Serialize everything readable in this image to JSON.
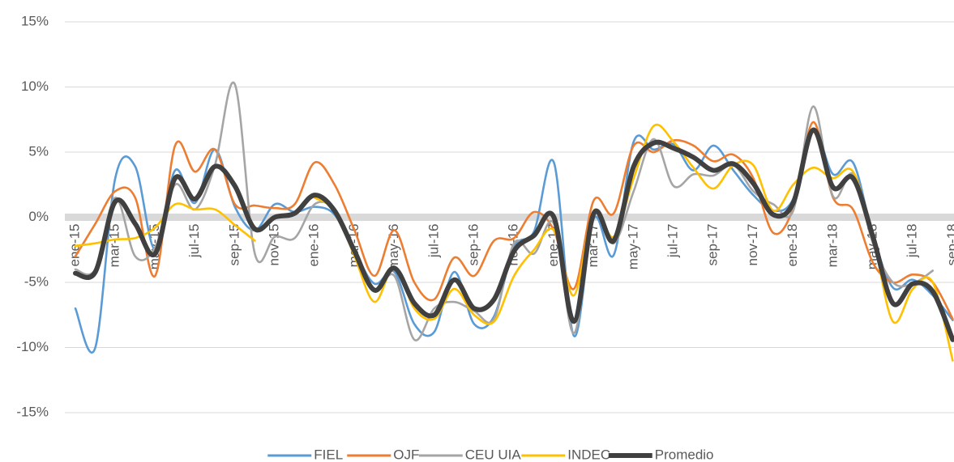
{
  "chart_data": {
    "type": "line",
    "categories": [
      "ene-15",
      null,
      "mar-15",
      null,
      "may-15",
      null,
      "jul-15",
      null,
      "sep-15",
      null,
      "nov-15",
      null,
      "ene-16",
      null,
      "mar-16",
      null,
      "may-16",
      null,
      "jul-16",
      null,
      "sep-16",
      null,
      "nov-16",
      null,
      "ene-17",
      null,
      "mar-17",
      null,
      "may-17",
      null,
      "jul-17",
      null,
      "sep-17",
      null,
      "nov-17",
      null,
      "ene-18",
      null,
      "mar-18",
      null,
      "may-18",
      null,
      "jul-18",
      null,
      "sep-18"
    ],
    "series": [
      {
        "name": "FIEL",
        "color": "#5b9bd5",
        "values": [
          -7.0,
          -10.0,
          3.0,
          3.9,
          -2.5,
          3.6,
          1.1,
          5.2,
          0.8,
          -1.0,
          1.0,
          0.4,
          0.8,
          0.2,
          -2.6,
          -5.1,
          -4.2,
          -8.2,
          -8.8,
          -4.2,
          -8.2,
          -7.6,
          -2.3,
          -1.1,
          4.2,
          -9.1,
          -0.1,
          -2.9,
          5.8,
          5.2,
          5.6,
          3.6,
          5.5,
          3.6,
          1.7,
          0.5,
          1.4,
          6.7,
          3.3,
          4.2,
          -1.4,
          -5.4,
          -4.8,
          -6.0,
          -7.9
        ]
      },
      {
        "name": "OJF",
        "color": "#ed7d31",
        "values": [
          -3.0,
          -0.5,
          2.0,
          1.5,
          -4.5,
          5.5,
          3.5,
          5.2,
          1.0,
          0.9,
          0.7,
          1.0,
          4.2,
          2.5,
          -1.0,
          -4.5,
          -1.0,
          -5.0,
          -6.3,
          -3.1,
          -4.5,
          -1.8,
          -1.6,
          0.4,
          -1.0,
          -5.5,
          1.3,
          0.3,
          5.5,
          5.0,
          5.9,
          5.5,
          4.3,
          4.8,
          3.0,
          -1.2,
          0.7,
          7.3,
          1.5,
          0.6,
          -3.5,
          -5.0,
          -4.4,
          -5.0,
          -7.8
        ]
      },
      {
        "name": "CEU UIA",
        "color": "#a5a5a5",
        "values": [
          -4.0,
          -4.0,
          1.5,
          -3.0,
          -2.3,
          2.5,
          0.6,
          4.0,
          10.2,
          -2.8,
          -1.5,
          -1.6,
          1.0,
          0.6,
          -2.5,
          -5.5,
          -4.5,
          -9.4,
          -7.0,
          -6.5,
          -7.2,
          -7.8,
          -2.0,
          -2.8,
          -0.5,
          -8.9,
          0.3,
          -2.0,
          2.0,
          6.0,
          2.4,
          3.3,
          3.2,
          4.0,
          2.0,
          1.0,
          0.5,
          8.5,
          1.6,
          3.3,
          -2.0,
          -5.0,
          -5.1,
          -4.1,
          null
        ]
      },
      {
        "name": "INDEC",
        "color": "#ffc000",
        "values": [
          -2.2,
          -2.0,
          -1.7,
          -1.6,
          -0.8,
          1.0,
          0.6,
          0.6,
          -0.6,
          -1.8,
          null,
          null,
          1.5,
          0.5,
          -3.0,
          -6.5,
          -3.8,
          -7.0,
          -7.8,
          -5.5,
          -7.5,
          -8.0,
          -4.5,
          -2.5,
          -1.0,
          -6.0,
          0.5,
          -1.5,
          3.0,
          7.0,
          5.8,
          3.8,
          2.2,
          4.0,
          4.0,
          0.5,
          2.5,
          3.8,
          3.0,
          3.5,
          -1.5,
          -8.0,
          -5.5,
          -5.0,
          -11.0
        ]
      },
      {
        "name": "Promedio",
        "color": "#404040",
        "values": [
          -4.3,
          -4.2,
          1.2,
          -0.5,
          -2.8,
          3.0,
          1.4,
          3.9,
          2.4,
          -0.9,
          0.0,
          0.3,
          1.7,
          0.5,
          -2.6,
          -5.6,
          -3.9,
          -6.6,
          -7.5,
          -4.8,
          -7.0,
          -6.3,
          -2.6,
          -1.4,
          0.0,
          -8.0,
          0.3,
          -1.8,
          3.9,
          5.7,
          5.3,
          4.6,
          3.6,
          4.1,
          2.6,
          0.2,
          1.1,
          6.7,
          2.3,
          3.0,
          -1.5,
          -6.6,
          -5.1,
          -5.7,
          -9.4
        ]
      }
    ],
    "ylim": [
      -15,
      15
    ],
    "yticks": [
      {
        "value": -15,
        "label": "-15%"
      },
      {
        "value": -10,
        "label": "-10%"
      },
      {
        "value": -5,
        "label": "-5%"
      },
      {
        "value": 0,
        "label": "0%"
      },
      {
        "value": 5,
        "label": "5%"
      },
      {
        "value": 10,
        "label": "10%"
      },
      {
        "value": 15,
        "label": "15%"
      }
    ],
    "grid": true,
    "legend": "bottom"
  }
}
